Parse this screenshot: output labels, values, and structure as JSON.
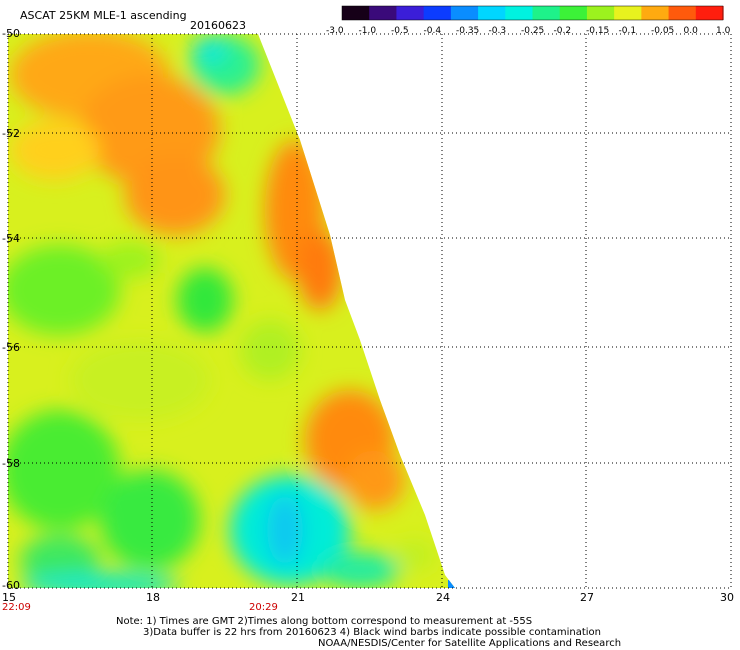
{
  "header": {
    "product": "ASCAT 25KM MLE-1 ascending",
    "date": "20160623"
  },
  "colorbar": {
    "labels": [
      "-3.0",
      "-1.0",
      "-0.5",
      "-0.4",
      "-0.35",
      "-0.3",
      "-0.25",
      "-0.2",
      "-0.15",
      "-0.1",
      "-0.05",
      "0.0",
      "1.0"
    ],
    "colors": [
      "#160018",
      "#3a0a7a",
      "#3b1ed8",
      "#0c3cff",
      "#0a8dff",
      "#00d6ff",
      "#00f2e0",
      "#1ef28a",
      "#3cf238",
      "#9cf21e",
      "#e8f21e",
      "#ffaa10",
      "#ff5a0c",
      "#ff1e0e"
    ]
  },
  "axes": {
    "x_ticks": [
      "15",
      "18",
      "21",
      "24",
      "27",
      "30"
    ],
    "y_ticks": [
      "-50",
      "-52",
      "-54",
      "-56",
      "-58",
      "-60"
    ],
    "time_labels": [
      "22:09",
      "20:29"
    ]
  },
  "notes": {
    "line1": "Note: 1) Times are GMT 2)Times along bottom correspond to measurement at -55S",
    "line2": "3)Data buffer is 22 hrs from 20160623 4) Black wind barbs indicate possible contamination",
    "line3": "NOAA/NESDIS/Center for Satellite Applications and Research"
  }
}
